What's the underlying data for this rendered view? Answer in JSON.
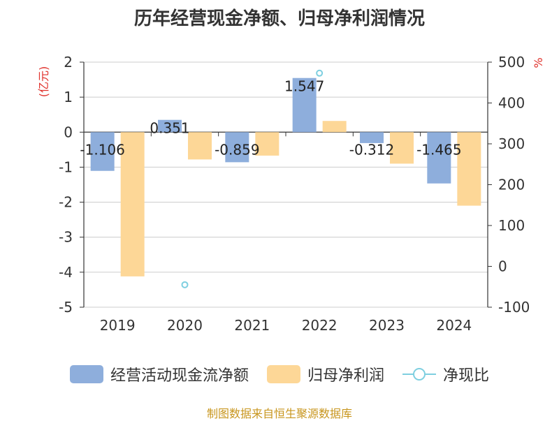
{
  "title": "历年经营现金净额、归母净利润情况",
  "source": "制图数据来自恒生聚源数据库",
  "chart_data": {
    "type": "bar",
    "categories": [
      "2019",
      "2020",
      "2021",
      "2022",
      "2023",
      "2024"
    ],
    "series": [
      {
        "name": "经营活动现金流净额",
        "type": "bar",
        "axis": "left",
        "color": "#8eaedc",
        "values": [
          -1.106,
          0.351,
          -0.859,
          1.547,
          -0.312,
          -1.465
        ],
        "labels": [
          "-1.106",
          "0.351",
          "-0.859",
          "1.547",
          "-0.312",
          "-1.465"
        ]
      },
      {
        "name": "归母净利润",
        "type": "bar",
        "axis": "left",
        "color": "#fdd797",
        "values": [
          -4.12,
          -0.78,
          -0.67,
          0.32,
          -0.9,
          -2.1
        ]
      },
      {
        "name": "净现比",
        "type": "line",
        "axis": "right",
        "color": "#7ecfe0",
        "values": [
          null,
          -45,
          null,
          473,
          null,
          null
        ]
      }
    ],
    "left_axis": {
      "label": "(亿元)",
      "ylim": [
        -5,
        2
      ],
      "ticks": [
        "2",
        "1",
        "0",
        "-1",
        "-2",
        "-3",
        "-4",
        "-5"
      ],
      "tick_values": [
        2,
        1,
        0,
        -1,
        -2,
        -3,
        -4,
        -5
      ]
    },
    "right_axis": {
      "label": "%",
      "ylim": [
        -100,
        500
      ],
      "ticks": [
        "500",
        "400",
        "300",
        "200",
        "100",
        "0",
        "-100"
      ],
      "tick_values": [
        500,
        400,
        300,
        200,
        100,
        0,
        -100
      ]
    },
    "grid": true,
    "legend_position": "bottom"
  }
}
